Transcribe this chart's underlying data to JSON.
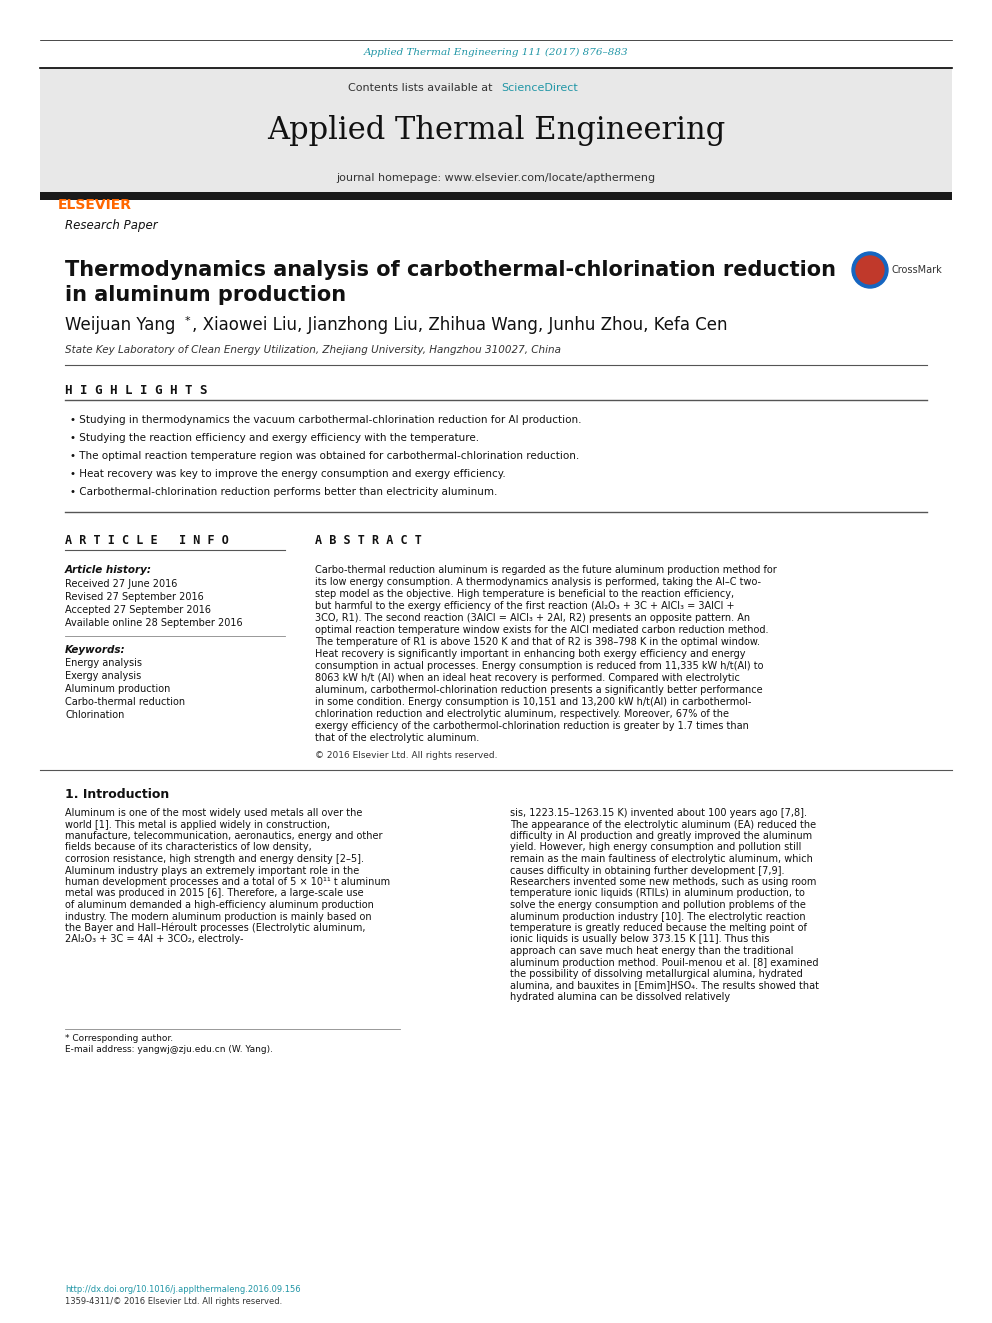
{
  "journal_ref": "Applied Thermal Engineering 111 (2017) 876–883",
  "journal_title": "Applied Thermal Engineering",
  "contents_line": "Contents lists available at ScienceDirect",
  "journal_homepage": "journal homepage: www.elsevier.com/locate/apthermeng",
  "section_label": "Research Paper",
  "paper_title_line1": "Thermodynamics analysis of carbothermal-chlorination reduction",
  "paper_title_line2": "in aluminum production",
  "authors": "Weijuan Yang*, Xiaowei Liu, Jianzhong Liu, Zhihua Wang, Junhu Zhou, Kefa Cen",
  "affiliation": "State Key Laboratory of Clean Energy Utilization, Zhejiang University, Hangzhou 310027, China",
  "highlights_title": "H I G H L I G H T S",
  "highlights": [
    "Studying in thermodynamics the vacuum carbothermal-chlorination reduction for Al production.",
    "Studying the reaction efficiency and exergy efficiency with the temperature.",
    "The optimal reaction temperature region was obtained for carbothermal-chlorination reduction.",
    "Heat recovery was key to improve the energy consumption and exergy efficiency.",
    "Carbothermal-chlorination reduction performs better than electricity aluminum."
  ],
  "article_info_title": "A R T I C L E   I N F O",
  "article_history_label": "Article history:",
  "article_history": [
    "Received 27 June 2016",
    "Revised 27 September 2016",
    "Accepted 27 September 2016",
    "Available online 28 September 2016"
  ],
  "keywords_label": "Keywords:",
  "keywords": [
    "Energy analysis",
    "Exergy analysis",
    "Aluminum production",
    "Carbo-thermal reduction",
    "Chlorination"
  ],
  "abstract_title": "A B S T R A C T",
  "abstract_text": "Carbo-thermal reduction aluminum is regarded as the future aluminum production method for its low energy consumption. A thermodynamics analysis is performed, taking the Al–C two-step model as the objective. High temperature is beneficial to the reaction efficiency, but harmful to the exergy efficiency of the first reaction (Al₂O₃ + 3C + AlCl₃ = 3AlCl + 3CO, R1). The second reaction (3AlCl = AlCl₃ + 2Al, R2) presents an opposite pattern. An optimal reaction temperature window exists for the AlCl mediated carbon reduction method. The temperature of R1 is above 1520 K and that of R2 is 398–798 K in the optimal window. Heat recovery is significantly important in enhancing both exergy efficiency and energy consumption in actual processes. Energy consumption is reduced from 11,335 kW h/t(Al) to 8063 kW h/t (Al) when an ideal heat recovery is performed. Compared with electrolytic aluminum, carbothermol-chlorination reduction presents a significantly better performance in some condition. Energy consumption is 10,151 and 13,200 kW h/t(Al) in carbothermol-chlorination reduction and electrolytic aluminum, respectively. Moreover, 67% of the exergy efficiency of the carbothermol-chlorination reduction is greater by 1.7 times than that of the electrolytic aluminum.",
  "copyright": "© 2016 Elsevier Ltd. All rights reserved.",
  "intro_title": "1. Introduction",
  "intro_col1": "Aluminum is one of the most widely used metals all over the world [1]. This metal is applied widely in construction, manufacture, telecommunication, aeronautics, energy and other fields because of its characteristics of low density, corrosion resistance, high strength and energy density [2–5]. Aluminum industry plays an extremely important role in the human development processes and a total of 5 × 10¹¹ t aluminum metal was produced in 2015 [6]. Therefore, a large-scale use of aluminum demanded a high-efficiency aluminum production industry. The modern aluminum production is mainly based on the Bayer and Hall–Héroult processes (Electrolytic aluminum, 2Al₂O₃ + 3C = 4Al + 3CO₂, electroly-",
  "intro_col2": "sis, 1223.15–1263.15 K) invented about 100 years ago [7,8]. The appearance of the electrolytic aluminum (EA) reduced the difficulty in Al production and greatly improved the aluminum yield. However, high energy consumption and pollution still remain as the main faultiness of electrolytic aluminum, which causes difficulty in obtaining further development [7,9].\n\n   Researchers invented some new methods, such as using room temperature ionic liquids (RTILs) in aluminum production, to solve the energy consumption and pollution problems of the aluminum production industry [10]. The electrolytic reaction temperature is greatly reduced because the melting point of ionic liquids is usually below 373.15 K [11]. Thus this approach can save much heat energy than the traditional aluminum production method. Pouil-menou et al. [8] examined the possibility of dissolving metallurgical alumina, hydrated alumina, and bauxites in [Emim]HSO₄. The results showed that hydrated alumina can be dissolved relatively",
  "footnote_star": "* Corresponding author.",
  "footnote_email": "E-mail address: yangwj@zju.edu.cn (W. Yang).",
  "footnote_doi": "http://dx.doi.org/10.1016/j.applthermaleng.2016.09.156",
  "footnote_issn": "1359-4311/© 2016 Elsevier Ltd. All rights reserved.",
  "bg_color": "#ffffff",
  "header_bg": "#e8e8e8",
  "journal_ref_color": "#2196A6",
  "sciencedirect_color": "#2196A6",
  "elsevier_color": "#FF6600",
  "black_bar_color": "#1a1a1a",
  "title_font_size": 15,
  "body_font_size": 6.5,
  "small_font_size": 5.8
}
